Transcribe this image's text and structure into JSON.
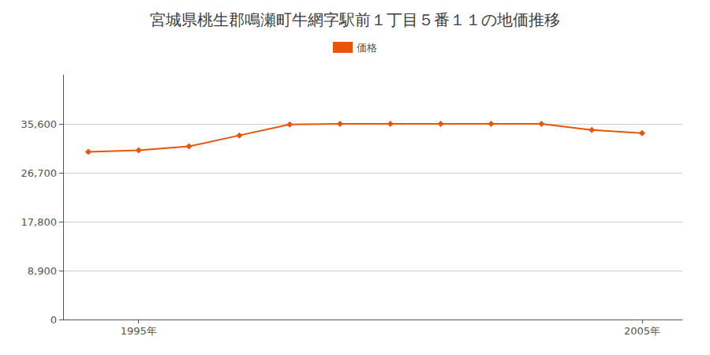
{
  "chart_data": {
    "type": "line",
    "title": "宮城県桃生郡鳴瀬町牛網字駅前１丁目５番１１の地価推移",
    "x": [
      1994,
      1995,
      1996,
      1997,
      1998,
      1999,
      2000,
      2001,
      2002,
      2003,
      2004,
      2005
    ],
    "series": [
      {
        "name": "価格",
        "color": "#e8550a",
        "marker": "diamond",
        "values": [
          30500,
          30800,
          31500,
          33500,
          35500,
          35600,
          35600,
          35600,
          35600,
          35600,
          34500,
          33900
        ]
      }
    ],
    "xlim": [
      1993.5,
      2005.8
    ],
    "xticks": [
      {
        "value": 1995,
        "label": "1995年"
      },
      {
        "value": 2005,
        "label": "2005年"
      }
    ],
    "ylim": [
      0,
      44500
    ],
    "yticks": [
      0,
      {
        "value": 8900,
        "label": "8,900"
      },
      {
        "value": 17800,
        "label": "17,800"
      },
      {
        "value": 26700,
        "label": "26,700"
      },
      {
        "value": 35600,
        "label": "35,600"
      }
    ],
    "grid": true,
    "legend": "top"
  }
}
